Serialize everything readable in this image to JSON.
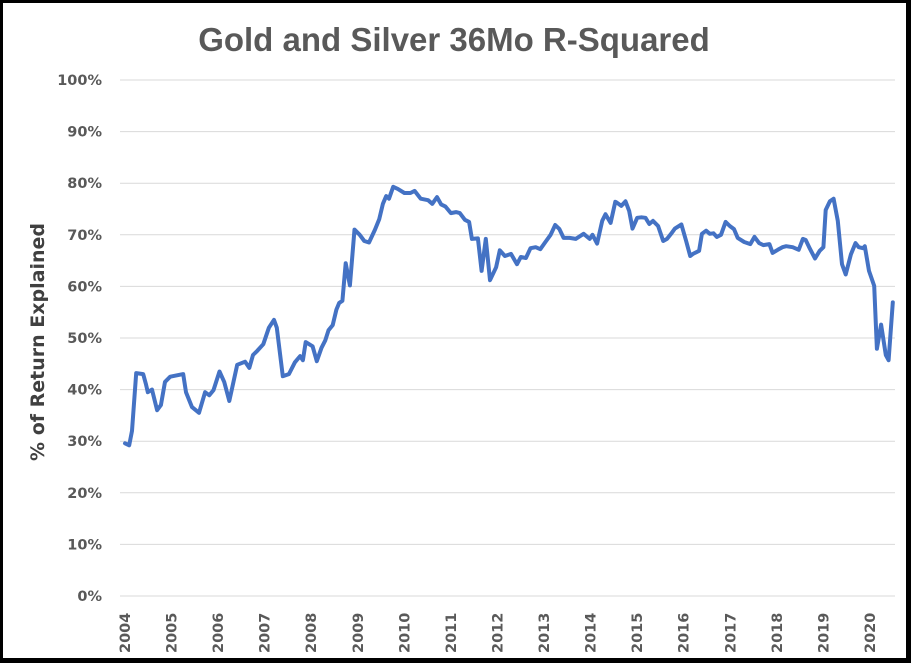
{
  "chart_data": {
    "type": "line",
    "title": "Gold and Silver 36Mo R-Squared",
    "xlabel": "",
    "ylabel": "% of Return Explained",
    "ylim": [
      0,
      100
    ],
    "yticks": [
      "0%",
      "10%",
      "20%",
      "30%",
      "40%",
      "50%",
      "60%",
      "70%",
      "80%",
      "90%",
      "100%"
    ],
    "ytick_values": [
      0,
      10,
      20,
      30,
      40,
      50,
      60,
      70,
      80,
      90,
      100
    ],
    "xlim": [
      2004,
      2020.6
    ],
    "xticks": [
      "2004",
      "2005",
      "2006",
      "2007",
      "2008",
      "2009",
      "2010",
      "2011",
      "2012",
      "2013",
      "2014",
      "2015",
      "2016",
      "2017",
      "2018",
      "2019",
      "2020"
    ],
    "xtick_values": [
      2004,
      2005,
      2006,
      2007,
      2008,
      2009,
      2010,
      2011,
      2012,
      2013,
      2014,
      2015,
      2016,
      2017,
      2018,
      2019,
      2020
    ],
    "grid": true,
    "legend": "none",
    "series_color": "#4472c4",
    "series": [
      {
        "name": "36Mo R-Squared",
        "x": [
          2004.0,
          2004.09,
          2004.15,
          2004.24,
          2004.39,
          2004.45,
          2004.49,
          2004.58,
          2004.69,
          2004.77,
          2004.86,
          2004.97,
          2005.25,
          2005.31,
          2005.44,
          2005.59,
          2005.72,
          2005.81,
          2005.9,
          2006.03,
          2006.13,
          2006.24,
          2006.41,
          2006.58,
          2006.67,
          2006.75,
          2006.84,
          2006.97,
          2007.09,
          2007.2,
          2007.26,
          2007.39,
          2007.52,
          2007.65,
          2007.76,
          2007.82,
          2007.88,
          2008.03,
          2008.12,
          2008.22,
          2008.3,
          2008.37,
          2008.46,
          2008.54,
          2008.6,
          2008.67,
          2008.74,
          2008.83,
          2008.93,
          2009.04,
          2009.14,
          2009.24,
          2009.37,
          2009.46,
          2009.54,
          2009.61,
          2009.67,
          2009.76,
          2009.86,
          2010.0,
          2010.13,
          2010.22,
          2010.35,
          2010.51,
          2010.6,
          2010.7,
          2010.79,
          2010.88,
          2011.0,
          2011.11,
          2011.19,
          2011.3,
          2011.39,
          2011.45,
          2011.58,
          2011.66,
          2011.75,
          2011.84,
          2011.97,
          2012.05,
          2012.16,
          2012.29,
          2012.42,
          2012.5,
          2012.61,
          2012.71,
          2012.82,
          2012.92,
          2013.03,
          2013.14,
          2013.24,
          2013.33,
          2013.42,
          2013.55,
          2013.68,
          2013.85,
          2013.98,
          2014.04,
          2014.14,
          2014.25,
          2014.32,
          2014.43,
          2014.53,
          2014.57,
          2014.66,
          2014.75,
          2014.83,
          2014.9,
          2015.0,
          2015.09,
          2015.18,
          2015.26,
          2015.34,
          2015.45,
          2015.56,
          2015.64,
          2015.73,
          2015.81,
          2015.95,
          2016.05,
          2016.14,
          2016.2,
          2016.33,
          2016.39,
          2016.48,
          2016.56,
          2016.64,
          2016.71,
          2016.8,
          2016.9,
          2016.99,
          2017.08,
          2017.16,
          2017.3,
          2017.43,
          2017.52,
          2017.62,
          2017.71,
          2017.84,
          2017.91,
          2018.02,
          2018.12,
          2018.2,
          2018.34,
          2018.47,
          2018.56,
          2018.62,
          2018.71,
          2018.82,
          2018.92,
          2019.0,
          2019.05,
          2019.14,
          2019.22,
          2019.31,
          2019.4,
          2019.48,
          2019.59,
          2019.69,
          2019.76,
          2019.85,
          2019.89,
          2019.98,
          2020.09,
          2020.15,
          2020.24,
          2020.34,
          2020.4,
          2020.49
        ],
        "values": [
          29.6,
          29.2,
          32.0,
          43.2,
          43.0,
          41.0,
          39.5,
          40.0,
          36.0,
          37.0,
          41.5,
          42.5,
          43.0,
          39.5,
          36.6,
          35.5,
          39.5,
          38.9,
          39.9,
          43.5,
          41.5,
          37.8,
          44.8,
          45.4,
          44.2,
          46.7,
          47.5,
          48.8,
          52.0,
          53.5,
          52.0,
          42.6,
          43.0,
          45.3,
          46.5,
          45.7,
          49.2,
          48.4,
          45.5,
          48.1,
          49.5,
          51.5,
          52.5,
          55.5,
          56.8,
          57.2,
          64.5,
          60.2,
          71.0,
          70.0,
          68.8,
          68.5,
          71.0,
          73.0,
          76.0,
          77.5,
          77.0,
          79.3,
          78.9,
          78.1,
          78.1,
          78.5,
          77.0,
          76.7,
          76.0,
          77.3,
          75.9,
          75.5,
          74.2,
          74.4,
          74.2,
          72.9,
          72.5,
          69.2,
          69.3,
          63.0,
          69.2,
          61.2,
          63.7,
          67.0,
          65.9,
          66.3,
          64.3,
          65.7,
          65.5,
          67.4,
          67.6,
          67.2,
          68.6,
          70.0,
          71.9,
          71.1,
          69.4,
          69.4,
          69.2,
          70.2,
          69.2,
          70.0,
          68.3,
          72.7,
          74.0,
          72.3,
          76.4,
          76.2,
          75.6,
          76.5,
          74.6,
          71.2,
          73.3,
          73.4,
          73.3,
          72.1,
          72.7,
          71.7,
          68.8,
          69.2,
          70.2,
          71.2,
          72.0,
          68.9,
          65.9,
          66.3,
          66.9,
          70.2,
          70.8,
          70.2,
          70.3,
          69.6,
          70.0,
          72.5,
          71.7,
          71.1,
          69.4,
          68.6,
          68.2,
          69.6,
          68.4,
          68.0,
          68.2,
          66.5,
          67.1,
          67.6,
          67.8,
          67.6,
          67.1,
          69.2,
          69.0,
          67.3,
          65.4,
          66.9,
          67.6,
          74.8,
          76.5,
          77.0,
          72.7,
          64.3,
          62.3,
          66.2,
          68.4,
          67.6,
          67.4,
          67.8,
          63.0,
          60.1,
          47.9,
          52.6,
          46.7,
          45.7,
          56.9
        ]
      }
    ]
  }
}
